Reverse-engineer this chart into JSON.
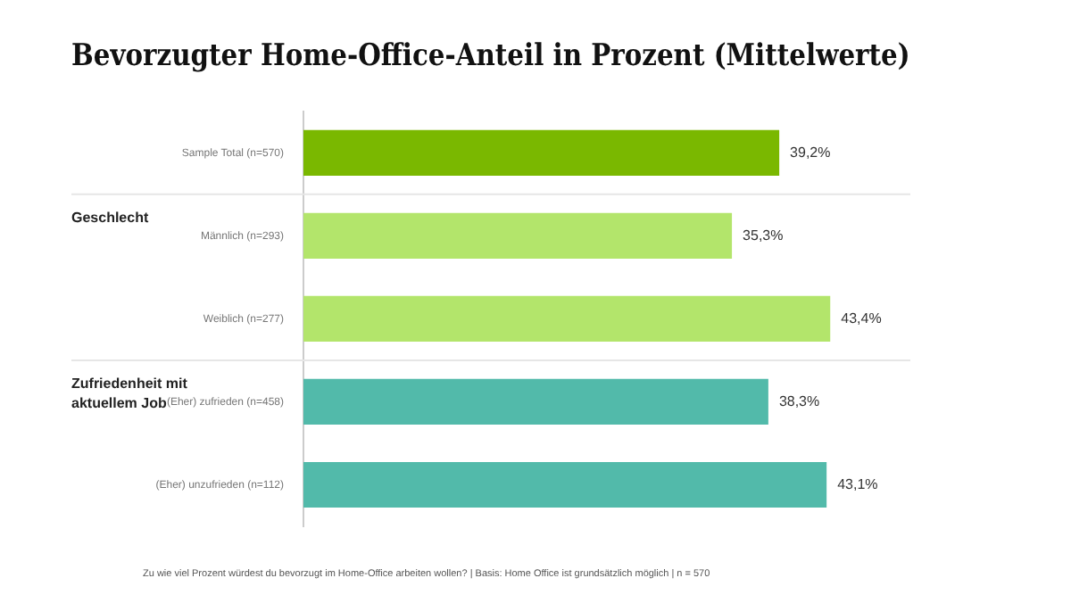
{
  "chart_data": {
    "type": "bar",
    "orientation": "horizontal",
    "title": "Bevorzugter Home-Office-Anteil in Prozent (Mittelwerte)",
    "categories": [
      "Sample Total (n=570)",
      "Männlich (n=293)",
      "Weiblich (n=277)",
      "(Eher) zufrieden (n=458)",
      "(Eher) unzufrieden (n=112)"
    ],
    "values": [
      39.2,
      35.3,
      43.4,
      38.3,
      43.1
    ],
    "colors": [
      "#7ab800",
      "#b3e56b",
      "#b3e56b",
      "#52baaa",
      "#52baaa"
    ],
    "value_labels": [
      "39,2%",
      "35,3%",
      "43,4%",
      "38,3%",
      "43,1%"
    ],
    "annotations": [
      "Geschlecht",
      "Zufriedenheit mit aktuellem Job",
      "Zu wie viel Prozent würdest du bevorzugt im Home-Office arbeiten wollen? | Basis: Home Office ist grundsätzlich möglich | n = 570"
    ],
    "grid": false,
    "legend": false
  }
}
